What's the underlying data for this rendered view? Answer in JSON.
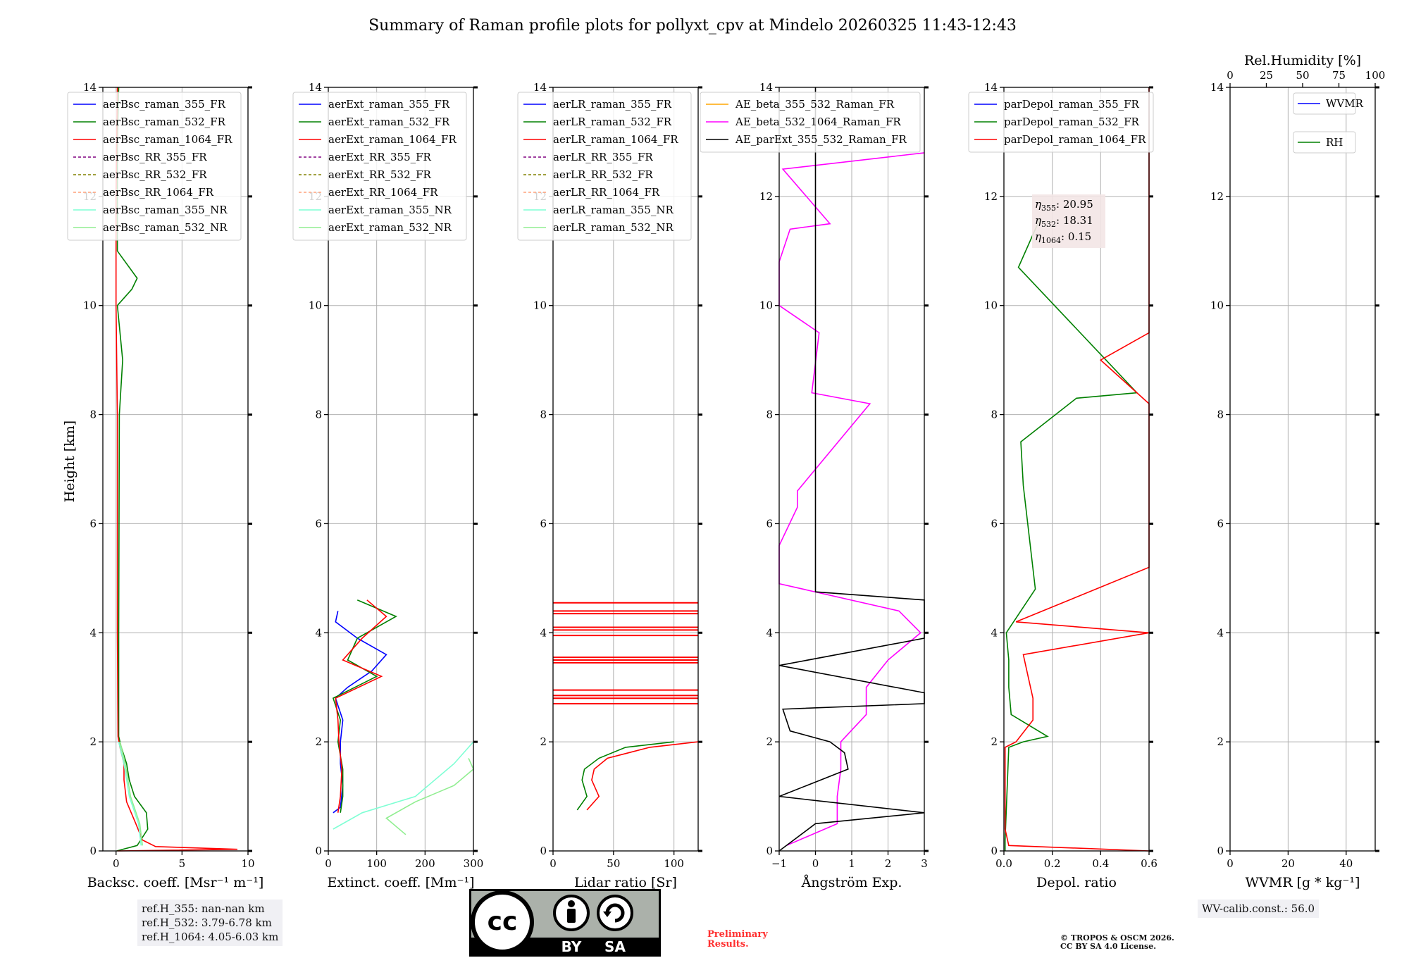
{
  "title": "Summary of Raman profile plots for pollyxt_cpv at Mindelo 20260325 11:43-12:43",
  "y_axis_label": "Height [km]",
  "y_ticks": [
    "0",
    "2",
    "4",
    "6",
    "8",
    "10",
    "12",
    "14"
  ],
  "panels": [
    {
      "id": "backscatter",
      "xlabel": "Backsc. coeff. [Msr⁻¹ m⁻¹]",
      "xlim": [
        -1,
        10
      ],
      "xticks": [
        {
          "v": 0,
          "t": "0"
        },
        {
          "v": 5,
          "t": "5"
        },
        {
          "v": 10,
          "t": "10"
        }
      ],
      "legend": [
        {
          "label": "aerBsc_raman_355_FR",
          "color": "#0000ff",
          "dash": false
        },
        {
          "label": "aerBsc_raman_532_FR",
          "color": "#008000",
          "dash": false
        },
        {
          "label": "aerBsc_raman_1064_FR",
          "color": "#ff0000",
          "dash": false
        },
        {
          "label": "aerBsc_RR_355_FR",
          "color": "#800080",
          "dash": true
        },
        {
          "label": "aerBsc_RR_532_FR",
          "color": "#808000",
          "dash": true
        },
        {
          "label": "aerBsc_RR_1064_FR",
          "color": "#ffa07a",
          "dash": true
        },
        {
          "label": "aerBsc_raman_355_NR",
          "color": "#7fffd4",
          "dash": false
        },
        {
          "label": "aerBsc_raman_532_NR",
          "color": "#90ee90",
          "dash": false
        }
      ]
    },
    {
      "id": "extinction",
      "xlabel": "Extinct. coeff. [Mm⁻¹]",
      "xlim": [
        0,
        300
      ],
      "xticks": [
        {
          "v": 0,
          "t": "0"
        },
        {
          "v": 100,
          "t": "100"
        },
        {
          "v": 200,
          "t": "200"
        },
        {
          "v": 300,
          "t": "300"
        }
      ],
      "legend": [
        {
          "label": "aerExt_raman_355_FR",
          "color": "#0000ff",
          "dash": false
        },
        {
          "label": "aerExt_raman_532_FR",
          "color": "#008000",
          "dash": false
        },
        {
          "label": "aerExt_raman_1064_FR",
          "color": "#ff0000",
          "dash": false
        },
        {
          "label": "aerExt_RR_355_FR",
          "color": "#800080",
          "dash": true
        },
        {
          "label": "aerExt_RR_532_FR",
          "color": "#808000",
          "dash": true
        },
        {
          "label": "aerExt_RR_1064_FR",
          "color": "#ffa07a",
          "dash": true
        },
        {
          "label": "aerExt_raman_355_NR",
          "color": "#7fffd4",
          "dash": false
        },
        {
          "label": "aerExt_raman_532_NR",
          "color": "#90ee90",
          "dash": false
        }
      ]
    },
    {
      "id": "lidar_ratio",
      "xlabel": "Lidar ratio [Sr]",
      "xlim": [
        0,
        120
      ],
      "xticks": [
        {
          "v": 0,
          "t": "0"
        },
        {
          "v": 50,
          "t": "50"
        },
        {
          "v": 100,
          "t": "100"
        }
      ],
      "legend": [
        {
          "label": "aerLR_raman_355_FR",
          "color": "#0000ff",
          "dash": false
        },
        {
          "label": "aerLR_raman_532_FR",
          "color": "#008000",
          "dash": false
        },
        {
          "label": "aerLR_raman_1064_FR",
          "color": "#ff0000",
          "dash": false
        },
        {
          "label": "aerLR_RR_355_FR",
          "color": "#800080",
          "dash": true
        },
        {
          "label": "aerLR_RR_532_FR",
          "color": "#808000",
          "dash": true
        },
        {
          "label": "aerLR_RR_1064_FR",
          "color": "#ffa07a",
          "dash": true
        },
        {
          "label": "aerLR_raman_355_NR",
          "color": "#7fffd4",
          "dash": false
        },
        {
          "label": "aerLR_raman_532_NR",
          "color": "#90ee90",
          "dash": false
        }
      ]
    },
    {
      "id": "angstrom",
      "xlabel": "Ångström Exp.",
      "xlim": [
        -1,
        3
      ],
      "xticks": [
        {
          "v": -1,
          "t": "−1"
        },
        {
          "v": 0,
          "t": "0"
        },
        {
          "v": 1,
          "t": "1"
        },
        {
          "v": 2,
          "t": "2"
        },
        {
          "v": 3,
          "t": "3"
        }
      ],
      "legend": [
        {
          "label": "AE_beta_355_532_Raman_FR",
          "color": "#ffa500",
          "dash": false
        },
        {
          "label": "AE_beta_532_1064_Raman_FR",
          "color": "#ff00ff",
          "dash": false
        },
        {
          "label": "AE_parExt_355_532_Raman_FR",
          "color": "#000000",
          "dash": false
        }
      ]
    },
    {
      "id": "depol",
      "xlabel": "Depol. ratio",
      "xlim": [
        0,
        0.6
      ],
      "xticks": [
        {
          "v": 0,
          "t": "0.0"
        },
        {
          "v": 0.2,
          "t": "0.2"
        },
        {
          "v": 0.4,
          "t": "0.4"
        },
        {
          "v": 0.6,
          "t": "0.6"
        }
      ],
      "legend": [
        {
          "label": "parDepol_raman_355_FR",
          "color": "#0000ff",
          "dash": false
        },
        {
          "label": "parDepol_raman_532_FR",
          "color": "#008000",
          "dash": false
        },
        {
          "label": "parDepol_raman_1064_FR",
          "color": "#ff0000",
          "dash": false
        }
      ],
      "eta": [
        {
          "sub": "355",
          "value": "20.95"
        },
        {
          "sub": "532",
          "value": "18.31"
        },
        {
          "sub": "1064",
          "value": "0.15"
        }
      ]
    },
    {
      "id": "wvmr",
      "xlabel": "WVMR [g * kg⁻¹]",
      "xlim": [
        0,
        50
      ],
      "xticks": [
        {
          "v": 0,
          "t": "0"
        },
        {
          "v": 20,
          "t": "20"
        },
        {
          "v": 40,
          "t": "40"
        }
      ],
      "top_label": "Rel.Humidity [%]",
      "top_xlim": [
        0,
        100
      ],
      "top_ticks": [
        {
          "v": 0,
          "t": "0"
        },
        {
          "v": 25,
          "t": "25"
        },
        {
          "v": 50,
          "t": "50"
        },
        {
          "v": 75,
          "t": "75"
        },
        {
          "v": 100,
          "t": "100"
        }
      ],
      "legend": [
        {
          "label": "WVMR",
          "color": "#0000ff",
          "dash": false
        },
        {
          "label": "RH",
          "color": "#008000",
          "dash": false
        }
      ]
    }
  ],
  "chart_data": {
    "type": "line",
    "ylim": [
      0,
      14
    ],
    "backscatter": {
      "532_FR": [
        [
          0,
          0.05
        ],
        [
          0.1,
          1.6
        ],
        [
          0.4,
          2.4
        ],
        [
          0.7,
          2.3
        ],
        [
          1.0,
          1.4
        ],
        [
          1.3,
          1.0
        ],
        [
          1.6,
          0.8
        ],
        [
          1.9,
          0.4
        ],
        [
          2.1,
          0.2
        ],
        [
          4,
          0.2
        ],
        [
          8,
          0.25
        ],
        [
          9,
          0.5
        ],
        [
          10,
          0.1
        ],
        [
          10.3,
          1.2
        ],
        [
          10.5,
          1.6
        ],
        [
          11,
          0.1
        ],
        [
          12,
          0.1
        ],
        [
          13,
          0.1
        ],
        [
          14,
          0.2
        ]
      ],
      "1064_FR": [
        [
          0,
          0.1
        ],
        [
          0.03,
          9.2
        ],
        [
          0.08,
          3
        ],
        [
          0.2,
          2.0
        ],
        [
          0.5,
          1.5
        ],
        [
          0.9,
          0.8
        ],
        [
          1.3,
          0.6
        ],
        [
          1.6,
          0.6
        ],
        [
          1.9,
          0.3
        ],
        [
          2.1,
          0.15
        ],
        [
          4,
          0.1
        ],
        [
          8,
          0.1
        ],
        [
          10,
          0.0
        ],
        [
          11,
          0.0
        ],
        [
          12,
          0.0
        ],
        [
          14,
          0.1
        ]
      ],
      "355_NR": [
        [
          0.1,
          1.9
        ],
        [
          0.5,
          1.7
        ],
        [
          1.0,
          1.0
        ],
        [
          1.6,
          0.6
        ],
        [
          2.0,
          0.2
        ]
      ],
      "532_NR": [
        [
          0.1,
          2.0
        ],
        [
          0.5,
          1.8
        ],
        [
          1.0,
          1.1
        ],
        [
          1.6,
          0.7
        ],
        [
          2.0,
          0.3
        ]
      ]
    },
    "extinction": {
      "355_FR": [
        [
          0.7,
          10
        ],
        [
          0.8,
          25
        ],
        [
          1.2,
          30
        ],
        [
          1.6,
          25
        ],
        [
          2.0,
          25
        ],
        [
          2.4,
          30
        ],
        [
          2.8,
          15
        ],
        [
          3.0,
          40
        ],
        [
          3.3,
          90
        ],
        [
          3.6,
          120
        ],
        [
          3.9,
          60
        ],
        [
          4.2,
          15
        ],
        [
          4.4,
          20
        ]
      ],
      "532_FR": [
        [
          0.7,
          25
        ],
        [
          1.0,
          30
        ],
        [
          1.5,
          30
        ],
        [
          2.0,
          20
        ],
        [
          2.4,
          25
        ],
        [
          2.8,
          10
        ],
        [
          3.2,
          100
        ],
        [
          3.5,
          40
        ],
        [
          3.9,
          60
        ],
        [
          4.3,
          140
        ],
        [
          4.6,
          60
        ]
      ],
      "1064_FR": [
        [
          0.7,
          20
        ],
        [
          1.0,
          25
        ],
        [
          1.5,
          28
        ],
        [
          2.0,
          22
        ],
        [
          2.4,
          20
        ],
        [
          2.8,
          15
        ],
        [
          3.2,
          110
        ],
        [
          3.5,
          30
        ],
        [
          3.9,
          70
        ],
        [
          4.3,
          120
        ],
        [
          4.6,
          80
        ]
      ],
      "355_NR": [
        [
          0.4,
          10
        ],
        [
          0.7,
          70
        ],
        [
          1.0,
          180
        ],
        [
          1.3,
          220
        ],
        [
          1.6,
          260
        ],
        [
          2.0,
          300
        ]
      ],
      "532_NR": [
        [
          0.3,
          160
        ],
        [
          0.6,
          120
        ],
        [
          0.9,
          180
        ],
        [
          1.2,
          260
        ],
        [
          1.5,
          300
        ],
        [
          1.7,
          290
        ]
      ]
    },
    "lidar_ratio": {
      "532_FR": [
        [
          0.75,
          20
        ],
        [
          1.0,
          28
        ],
        [
          1.3,
          24
        ],
        [
          1.5,
          26
        ],
        [
          1.7,
          38
        ],
        [
          1.9,
          60
        ],
        [
          2.0,
          100
        ]
      ],
      "1064_FR": [
        [
          0.75,
          28
        ],
        [
          1.0,
          38
        ],
        [
          1.3,
          32
        ],
        [
          1.5,
          34
        ],
        [
          1.7,
          45
        ],
        [
          1.9,
          80
        ],
        [
          2.0,
          120
        ]
      ],
      "1064_FR_spikes_km": [
        2.7,
        2.8,
        2.85,
        2.95,
        3.45,
        3.5,
        3.55,
        3.95,
        4.05,
        4.1,
        4.35,
        4.4,
        4.55
      ]
    },
    "angstrom": {
      "beta_532_1064": [
        [
          0.1,
          -0.8
        ],
        [
          0.5,
          0.6
        ],
        [
          1.0,
          0.6
        ],
        [
          1.5,
          0.7
        ],
        [
          2.0,
          0.7
        ],
        [
          2.5,
          1.4
        ],
        [
          3.0,
          1.4
        ],
        [
          3.5,
          2.0
        ],
        [
          4.0,
          2.9
        ],
        [
          4.4,
          2.3
        ],
        [
          4.9,
          -1
        ],
        [
          5.6,
          -1
        ],
        [
          6.3,
          -0.5
        ],
        [
          6.6,
          -0.5
        ],
        [
          8.2,
          1.5
        ],
        [
          8.4,
          -0.1
        ],
        [
          9.5,
          0.1
        ],
        [
          10.0,
          -1
        ],
        [
          10.8,
          -1
        ],
        [
          11.4,
          -0.7
        ],
        [
          11.5,
          0.4
        ],
        [
          12.5,
          -0.9
        ],
        [
          12.8,
          3.0
        ]
      ],
      "parExt_355_532": [
        [
          0,
          -1
        ],
        [
          0.5,
          0
        ],
        [
          0.7,
          3.0
        ],
        [
          1.0,
          -1
        ],
        [
          1.5,
          0.9
        ],
        [
          1.8,
          0.8
        ],
        [
          2.0,
          0.4
        ],
        [
          2.2,
          -0.7
        ],
        [
          2.6,
          -0.9
        ],
        [
          2.7,
          3.0
        ],
        [
          2.9,
          3.0
        ],
        [
          3.4,
          -1
        ],
        [
          3.9,
          3.0
        ],
        [
          4.6,
          3.0
        ],
        [
          4.75,
          0
        ],
        [
          14,
          0
        ]
      ]
    },
    "depol": {
      "532_FR": [
        [
          0,
          0.005
        ],
        [
          0.2,
          0.005
        ],
        [
          1.9,
          0.02
        ],
        [
          2.0,
          0.08
        ],
        [
          2.1,
          0.18
        ],
        [
          2.5,
          0.03
        ],
        [
          3.0,
          0.02
        ],
        [
          3.5,
          0.02
        ],
        [
          4.0,
          0.01
        ],
        [
          4.8,
          0.13
        ],
        [
          6.7,
          0.08
        ],
        [
          7.5,
          0.07
        ],
        [
          8.3,
          0.3
        ],
        [
          8.4,
          0.55
        ],
        [
          10.7,
          0.06
        ],
        [
          11.6,
          0.15
        ]
      ],
      "1064_FR": [
        [
          0,
          0.6
        ],
        [
          0.1,
          0.02
        ],
        [
          0.4,
          0.005
        ],
        [
          1.9,
          0.005
        ],
        [
          2.0,
          0.05
        ],
        [
          2.4,
          0.12
        ],
        [
          2.8,
          0.12
        ],
        [
          3.2,
          0.1
        ],
        [
          3.6,
          0.08
        ],
        [
          4.0,
          0.6
        ],
        [
          4.2,
          0.05
        ],
        [
          5.2,
          0.6
        ],
        [
          5.5,
          0.6
        ],
        [
          6.4,
          0.6
        ],
        [
          6.6,
          0.6
        ],
        [
          7.0,
          0.6
        ],
        [
          7.3,
          0.6
        ],
        [
          7.7,
          0.6
        ],
        [
          8.0,
          0.6
        ],
        [
          8.2,
          0.6
        ],
        [
          9.0,
          0.4
        ],
        [
          9.5,
          0.6
        ],
        [
          10.0,
          0.6
        ],
        [
          10.9,
          0.6
        ],
        [
          11.2,
          0.6
        ],
        [
          11.8,
          0.6
        ],
        [
          12.2,
          0.6
        ],
        [
          12.5,
          0.6
        ],
        [
          12.9,
          0.6
        ],
        [
          14,
          0.6
        ]
      ]
    },
    "wvmr": {}
  },
  "footer": {
    "ref_h": [
      "ref.H_355: nan-nan km",
      "ref.H_532: 3.79-6.78 km",
      "ref.H_1064: 4.05-6.03 km"
    ],
    "wv_calib": "WV-calib.const.: 56.0",
    "license_by": "BY",
    "license_sa": "SA",
    "license_cc": "cc",
    "preliminary": [
      "Preliminary",
      "Results."
    ],
    "copyright": [
      "© TROPOS & OSCM 2026.",
      "CC BY SA 4.0 License."
    ]
  }
}
